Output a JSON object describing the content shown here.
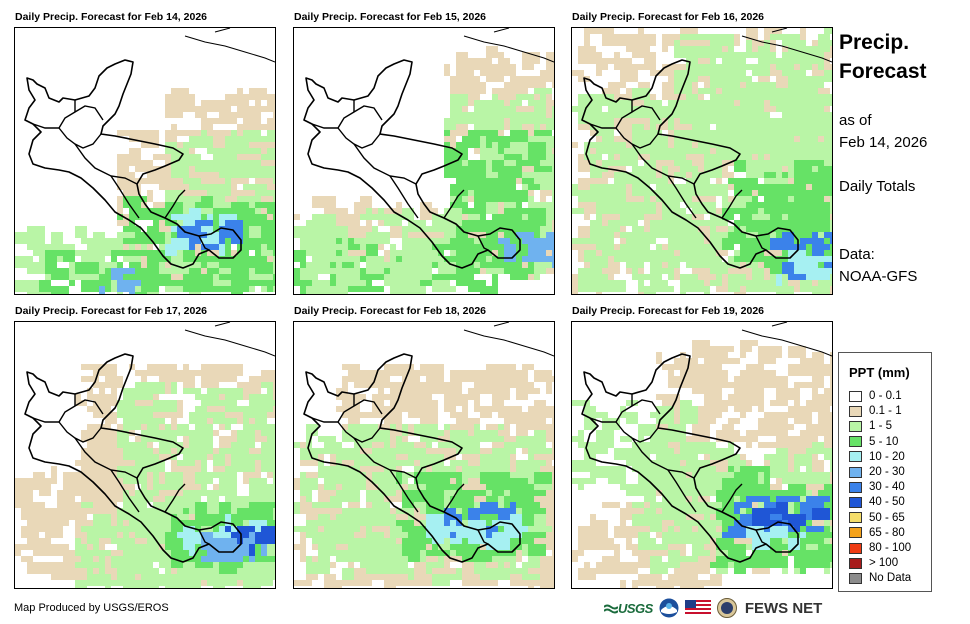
{
  "panels": [
    {
      "title": "Daily Precip. Forecast for Feb 14, 2026"
    },
    {
      "title": "Daily Precip. Forecast for Feb 15, 2026"
    },
    {
      "title": "Daily Precip. Forecast for Feb 16, 2026"
    },
    {
      "title": "Daily Precip. Forecast for Feb 17, 2026"
    },
    {
      "title": "Daily Precip. Forecast for Feb 18, 2026"
    },
    {
      "title": "Daily Precip. Forecast for Feb 19, 2026"
    }
  ],
  "side": {
    "title_line1": "Precip.",
    "title_line2": "Forecast",
    "asof_line1": "as of",
    "asof_line2": "Feb 14, 2026",
    "daily": "Daily Totals",
    "data_line1": "Data:",
    "data_line2": "NOAA-GFS"
  },
  "legend": {
    "title": "PPT (mm)",
    "items": [
      {
        "label": "0 - 0.1",
        "color": "#ffffff"
      },
      {
        "label": "0.1 - 1",
        "color": "#e9d8b8"
      },
      {
        "label": "1 - 5",
        "color": "#b9f5a6"
      },
      {
        "label": "5 - 10",
        "color": "#66e266"
      },
      {
        "label": "10 - 20",
        "color": "#a6f0f2"
      },
      {
        "label": "20 - 30",
        "color": "#6fb2ef"
      },
      {
        "label": "30 - 40",
        "color": "#3b82ea"
      },
      {
        "label": "40 - 50",
        "color": "#1f56d6"
      },
      {
        "label": "50 - 65",
        "color": "#f5dd6a"
      },
      {
        "label": "65 - 80",
        "color": "#f4a21b"
      },
      {
        "label": "80 - 100",
        "color": "#ef3b14"
      },
      {
        "label": "> 100",
        "color": "#a81c1c"
      },
      {
        "label": "No Data",
        "color": "#8c8c8c"
      }
    ]
  },
  "footer": {
    "credit": "Map Produced by USGS/EROS",
    "usgs_logo": "USGS",
    "fews_logo": "FEWS NET"
  }
}
